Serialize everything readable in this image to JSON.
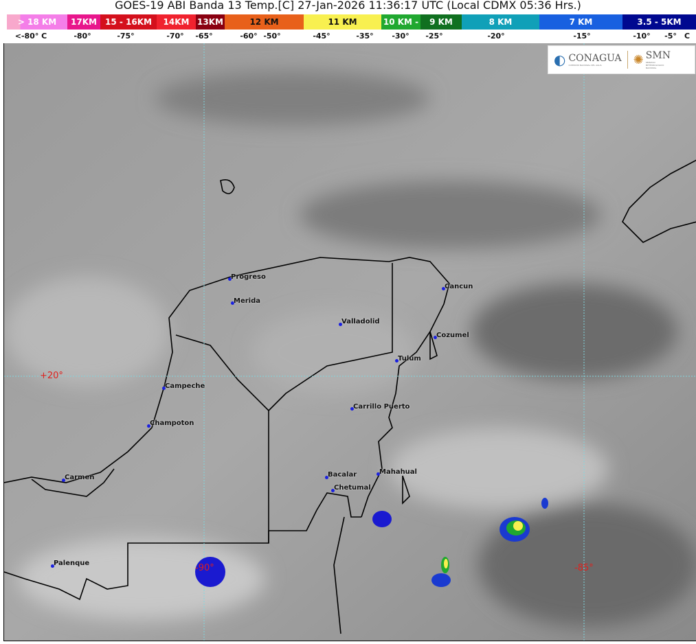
{
  "title": "GOES-19 ABI Banda 13 Temp.[C] 27-Jan-2026 11:36:17 UTC (Local CDMX  05:36 Hrs.)",
  "legend": {
    "bands": [
      {
        "label": "> 18 KM",
        "color": "#f47ee8"
      },
      {
        "label": "17KM",
        "color": "#e8168c"
      },
      {
        "label": "15 - 16KM",
        "color": "#d4101c"
      },
      {
        "label": "14KM",
        "color": "#f0222e"
      },
      {
        "label": "13KM",
        "color": "#8a0010"
      },
      {
        "label": "12 KM",
        "color": "#e8601a"
      },
      {
        "label": "11 KM",
        "color": "#f8f050"
      },
      {
        "label": "10 KM -",
        "color": "#20a830"
      },
      {
        "label": "9 KM",
        "color": "#107020"
      },
      {
        "label": "8 KM",
        "color": "#10a0b8"
      },
      {
        "label": "7 KM",
        "color": "#1860e0"
      },
      {
        "label": "3.5 - 5KM",
        "color": "#000890"
      }
    ],
    "ticks": [
      "<-80° C",
      "-80°",
      "-75°",
      "-70°",
      "-65°",
      "-60°",
      "-50°",
      "-45°",
      "-35°",
      "-30°",
      "-25°",
      "-20°",
      "-15°",
      "-10°",
      "-5°",
      "C"
    ]
  },
  "logos": {
    "conagua": "CONAGUA",
    "conagua_sub": "COMISIÓN NACIONAL DEL AGUA",
    "smn": "SMN",
    "smn_sub": "SERVICIO METEOROLÓGICO NACIONAL"
  },
  "grid_labels": {
    "lat20": "+20°",
    "lon90": "-90°",
    "lon85": "-85°"
  },
  "cities": [
    "Progreso",
    "Merida",
    "Valladolid",
    "Cancun",
    "Cozumel",
    "Tulum",
    "Campeche",
    "Champoton",
    "Carrillo Puerto",
    "Carmen",
    "Bacalar",
    "Mahahual",
    "Chetumal",
    "Palenque"
  ]
}
